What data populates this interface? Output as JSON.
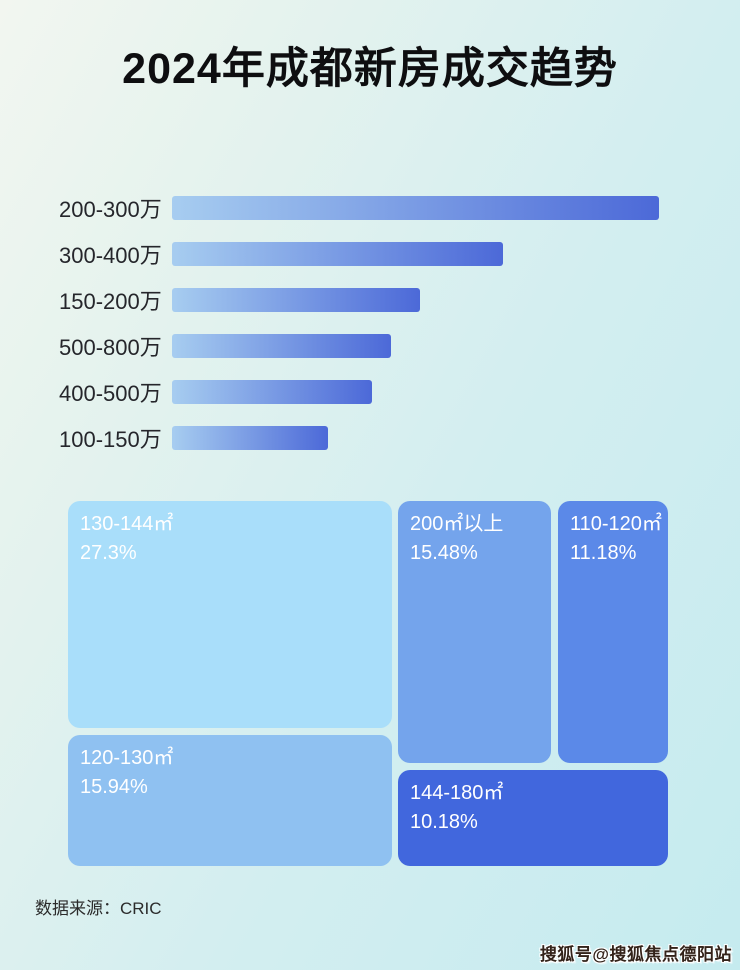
{
  "page": {
    "title": "2024年成都新房成交趋势",
    "source": "数据来源：CRIC",
    "watermark": "搜狐号@搜狐焦点德阳站"
  },
  "chart_data": [
    {
      "type": "bar",
      "orientation": "horizontal",
      "title": "",
      "categories": [
        "200-300万",
        "300-400万",
        "150-200万",
        "500-800万",
        "400-500万",
        "100-150万"
      ],
      "values": [
        100,
        68,
        51,
        45,
        41,
        32
      ],
      "note": "no numeric axis shown in image; values are relative bar lengths (% of longest bar)",
      "bar_gradient_start": "#a7cdf0",
      "bar_gradient_end": "#4c69d8",
      "label_color": "#25262b",
      "grid": false,
      "legend": false
    },
    {
      "type": "treemap",
      "title": "",
      "text_color": "#ffffff",
      "tiles": [
        {
          "label": "130-144㎡",
          "value": "27.3%",
          "value_pct": 27.3,
          "color": "#a9defa"
        },
        {
          "label": "120-130㎡",
          "value": "15.94%",
          "value_pct": 15.94,
          "color": "#8fc1f1"
        },
        {
          "label": "200㎡以上",
          "value": "15.48%",
          "value_pct": 15.48,
          "color": "#74a4ec"
        },
        {
          "label": "110-120㎡",
          "value": "11.18%",
          "value_pct": 11.18,
          "color": "#5b89e8"
        },
        {
          "label": "144-180㎡",
          "value": "10.18%",
          "value_pct": 10.18,
          "color": "#4167dd"
        }
      ]
    }
  ]
}
